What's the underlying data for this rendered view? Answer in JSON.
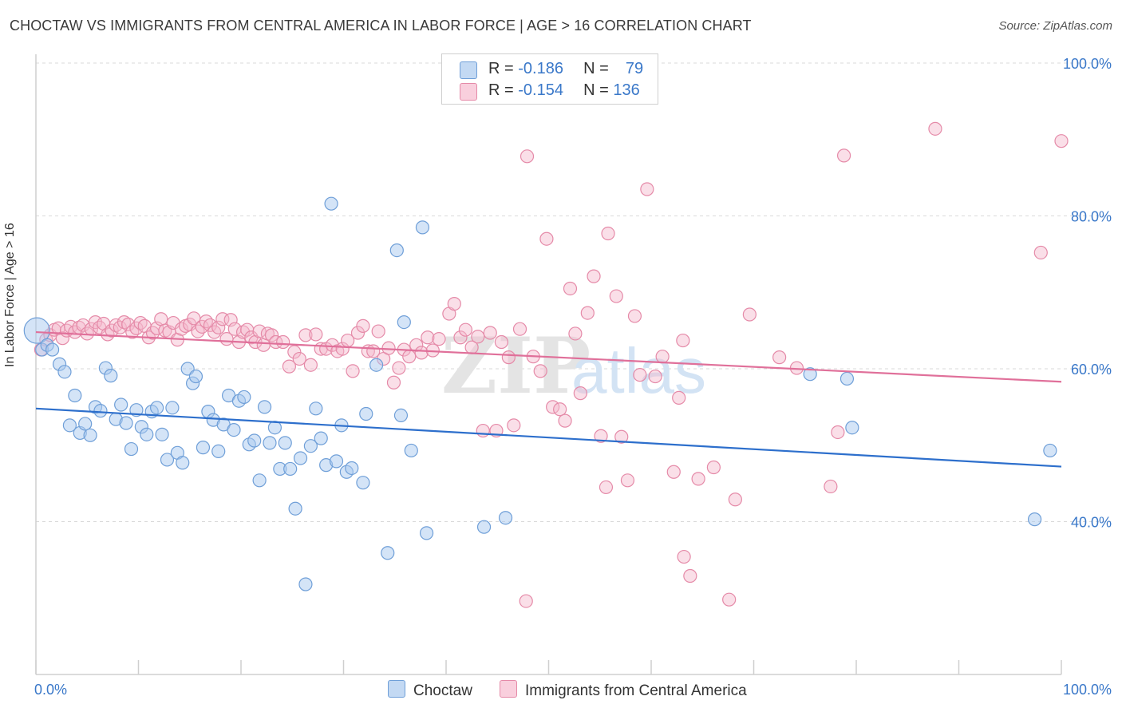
{
  "header": {
    "title": "CHOCTAW VS IMMIGRANTS FROM CENTRAL AMERICA IN LABOR FORCE | AGE > 16 CORRELATION CHART",
    "source": "Source: ZipAtlas.com"
  },
  "watermark": {
    "zip": "ZIP",
    "atlas": "atlas"
  },
  "legend": {
    "r_label": "R =",
    "n_label": "N =",
    "items": [
      {
        "r": "-0.186",
        "n": "79"
      },
      {
        "r": "-0.154",
        "n": "136"
      }
    ]
  },
  "bottom_legend": {
    "items": [
      "Choctaw",
      "Immigrants from Central America"
    ]
  },
  "colors": {
    "blue_fill": "#a9c9ef",
    "blue_stroke": "#6f9fd8",
    "blue_line": "#2d6fcc",
    "pink_fill": "#f5b7cb",
    "pink_stroke": "#e58aa8",
    "pink_line": "#e0709a",
    "tick_label": "#3a78c9",
    "grid": "#d9d9d9"
  },
  "chart_data": {
    "type": "scatter",
    "ylabel": "In Labor Force | Age > 16",
    "xlabel": "",
    "xlim": [
      0,
      100
    ],
    "ylim": [
      20,
      100
    ],
    "x_tick_labels": [
      "0.0%",
      "100.0%"
    ],
    "y_ticks": [
      40,
      60,
      80,
      100
    ],
    "y_tick_labels": [
      "40.0%",
      "60.0%",
      "80.0%",
      "100.0%"
    ],
    "grid": true,
    "legend_position": "top-center",
    "series": [
      {
        "name": "Choctaw",
        "r": -0.186,
        "n": 79,
        "trend": [
          [
            0,
            54.8
          ],
          [
            100,
            47.2
          ]
        ],
        "points": [
          [
            0.1,
            65
          ],
          [
            0.6,
            62.5
          ],
          [
            1.1,
            63.1
          ],
          [
            1.6,
            62.5
          ],
          [
            2.3,
            60.6
          ],
          [
            2.8,
            59.6
          ],
          [
            3.8,
            56.5
          ],
          [
            3.3,
            52.6
          ],
          [
            4.3,
            51.6
          ],
          [
            4.8,
            52.8
          ],
          [
            5.3,
            51.3
          ],
          [
            5.8,
            55
          ],
          [
            6.3,
            54.5
          ],
          [
            6.8,
            60.1
          ],
          [
            7.3,
            59.1
          ],
          [
            7.8,
            53.4
          ],
          [
            8.3,
            55.3
          ],
          [
            8.8,
            52.9
          ],
          [
            9.3,
            49.5
          ],
          [
            9.8,
            54.6
          ],
          [
            10.3,
            52.4
          ],
          [
            10.8,
            51.4
          ],
          [
            11.3,
            54.4
          ],
          [
            11.8,
            54.9
          ],
          [
            12.3,
            51.4
          ],
          [
            12.8,
            48.1
          ],
          [
            13.3,
            54.9
          ],
          [
            13.8,
            49
          ],
          [
            14.3,
            47.7
          ],
          [
            14.8,
            60
          ],
          [
            15.3,
            58.1
          ],
          [
            15.6,
            59
          ],
          [
            16.3,
            49.7
          ],
          [
            16.8,
            54.4
          ],
          [
            17.3,
            53.3
          ],
          [
            17.8,
            49.2
          ],
          [
            18.3,
            52.7
          ],
          [
            18.8,
            56.5
          ],
          [
            19.3,
            52
          ],
          [
            19.8,
            55.8
          ],
          [
            20.3,
            56.3
          ],
          [
            20.8,
            50.1
          ],
          [
            21.3,
            50.6
          ],
          [
            21.8,
            45.4
          ],
          [
            22.3,
            55
          ],
          [
            22.8,
            50.3
          ],
          [
            23.3,
            52.3
          ],
          [
            23.8,
            46.9
          ],
          [
            24.3,
            50.3
          ],
          [
            24.8,
            46.9
          ],
          [
            25.3,
            41.7
          ],
          [
            25.8,
            48.3
          ],
          [
            26.3,
            31.8
          ],
          [
            26.8,
            49.9
          ],
          [
            27.3,
            54.8
          ],
          [
            27.8,
            50.9
          ],
          [
            28.3,
            47.4
          ],
          [
            28.8,
            81.6
          ],
          [
            29.3,
            47.9
          ],
          [
            29.8,
            52.6
          ],
          [
            30.3,
            46.5
          ],
          [
            30.8,
            47
          ],
          [
            31.9,
            45.1
          ],
          [
            32.2,
            54.1
          ],
          [
            33.2,
            60.5
          ],
          [
            34.3,
            35.9
          ],
          [
            35.2,
            75.5
          ],
          [
            35.6,
            53.9
          ],
          [
            35.9,
            66.1
          ],
          [
            36.6,
            49.3
          ],
          [
            37.7,
            78.5
          ],
          [
            38.1,
            38.5
          ],
          [
            43.7,
            39.3
          ],
          [
            45.8,
            40.5
          ],
          [
            75.5,
            59.3
          ],
          [
            79.1,
            58.7
          ],
          [
            79.6,
            52.3
          ],
          [
            97.4,
            40.3
          ],
          [
            98.9,
            49.3
          ]
        ]
      },
      {
        "name": "Immigrants from Central America",
        "r": -0.154,
        "n": 136,
        "trend": [
          [
            0,
            64.8
          ],
          [
            100,
            58.3
          ]
        ],
        "points": [
          [
            0.5,
            62.5
          ],
          [
            1,
            63.8
          ],
          [
            1.4,
            64.4
          ],
          [
            1.8,
            65.1
          ],
          [
            2.2,
            65.3
          ],
          [
            2.6,
            64
          ],
          [
            3,
            65
          ],
          [
            3.4,
            65.5
          ],
          [
            3.8,
            64.8
          ],
          [
            4.2,
            65.4
          ],
          [
            4.6,
            65.7
          ],
          [
            5,
            64.6
          ],
          [
            5.4,
            65.2
          ],
          [
            5.8,
            66.1
          ],
          [
            6.2,
            65.4
          ],
          [
            6.6,
            65.9
          ],
          [
            7,
            64.5
          ],
          [
            7.4,
            65
          ],
          [
            7.8,
            65.7
          ],
          [
            8.2,
            65.4
          ],
          [
            8.6,
            66.1
          ],
          [
            9,
            65.8
          ],
          [
            9.4,
            64.8
          ],
          [
            9.8,
            65.3
          ],
          [
            10.2,
            66
          ],
          [
            10.6,
            65.6
          ],
          [
            11,
            64.1
          ],
          [
            11.4,
            64.7
          ],
          [
            11.8,
            65.3
          ],
          [
            12.2,
            66.5
          ],
          [
            12.6,
            65
          ],
          [
            13,
            64.8
          ],
          [
            13.4,
            66
          ],
          [
            13.8,
            63.8
          ],
          [
            14.2,
            65.2
          ],
          [
            14.6,
            65.6
          ],
          [
            15,
            65.8
          ],
          [
            15.4,
            66.6
          ],
          [
            15.8,
            64.9
          ],
          [
            16.2,
            65.5
          ],
          [
            16.6,
            66.2
          ],
          [
            17,
            65.7
          ],
          [
            17.4,
            64.8
          ],
          [
            17.8,
            65.4
          ],
          [
            18.2,
            66.5
          ],
          [
            18.6,
            63.9
          ],
          [
            19,
            66.4
          ],
          [
            19.4,
            65.2
          ],
          [
            19.8,
            63.5
          ],
          [
            20.2,
            64.8
          ],
          [
            20.6,
            65.1
          ],
          [
            21,
            64.1
          ],
          [
            21.4,
            63.5
          ],
          [
            21.8,
            64.9
          ],
          [
            22.2,
            63.1
          ],
          [
            22.6,
            64.6
          ],
          [
            23,
            64.4
          ],
          [
            23.4,
            63.5
          ],
          [
            24.1,
            63.5
          ],
          [
            24.7,
            60.3
          ],
          [
            25.2,
            62.2
          ],
          [
            25.7,
            61.3
          ],
          [
            26.3,
            64.4
          ],
          [
            26.8,
            60.5
          ],
          [
            27.3,
            64.5
          ],
          [
            27.8,
            62.6
          ],
          [
            28.3,
            62.6
          ],
          [
            28.9,
            63.1
          ],
          [
            29.4,
            62.3
          ],
          [
            29.9,
            62.6
          ],
          [
            30.4,
            63.7
          ],
          [
            30.9,
            59.7
          ],
          [
            31.4,
            64.7
          ],
          [
            31.9,
            65.6
          ],
          [
            32.4,
            62.3
          ],
          [
            32.9,
            62.3
          ],
          [
            33.4,
            64.9
          ],
          [
            33.9,
            61.3
          ],
          [
            34.4,
            62.7
          ],
          [
            34.9,
            58.2
          ],
          [
            35.4,
            60.1
          ],
          [
            35.9,
            62.5
          ],
          [
            36.4,
            61.6
          ],
          [
            37.1,
            63.1
          ],
          [
            37.6,
            62.1
          ],
          [
            38.2,
            64.1
          ],
          [
            38.7,
            62.4
          ],
          [
            39.3,
            63.9
          ],
          [
            40.3,
            67.2
          ],
          [
            40.8,
            68.5
          ],
          [
            41.4,
            64.1
          ],
          [
            41.9,
            65.1
          ],
          [
            42.5,
            62.8
          ],
          [
            43.1,
            64.2
          ],
          [
            43.6,
            51.9
          ],
          [
            44.3,
            64.7
          ],
          [
            44.9,
            51.9
          ],
          [
            45.4,
            63.5
          ],
          [
            46.1,
            61.5
          ],
          [
            46.6,
            52.6
          ],
          [
            47.2,
            65.2
          ],
          [
            47.8,
            29.6
          ],
          [
            47.9,
            87.8
          ],
          [
            48.5,
            61.6
          ],
          [
            49.2,
            59.7
          ],
          [
            49.8,
            77
          ],
          [
            50.4,
            55
          ],
          [
            51.1,
            54.7
          ],
          [
            51.6,
            53.2
          ],
          [
            52.1,
            70.5
          ],
          [
            52.6,
            64.6
          ],
          [
            53.1,
            56.8
          ],
          [
            53.8,
            67.3
          ],
          [
            54.4,
            72.1
          ],
          [
            55.1,
            51.2
          ],
          [
            55.6,
            44.5
          ],
          [
            55.8,
            77.7
          ],
          [
            56.6,
            69.5
          ],
          [
            57.1,
            51.1
          ],
          [
            57.7,
            45.4
          ],
          [
            58.4,
            66.9
          ],
          [
            58.9,
            59.2
          ],
          [
            59.6,
            83.5
          ],
          [
            60.4,
            59
          ],
          [
            61.1,
            61.6
          ],
          [
            62.2,
            46.5
          ],
          [
            62.7,
            56.2
          ],
          [
            63.1,
            63.7
          ],
          [
            63.2,
            35.4
          ],
          [
            63.8,
            32.9
          ],
          [
            64.6,
            45.6
          ],
          [
            66.1,
            47.1
          ],
          [
            67.6,
            29.8
          ],
          [
            68.2,
            42.9
          ],
          [
            69.6,
            67.1
          ],
          [
            72.5,
            61.5
          ],
          [
            74.2,
            60.1
          ],
          [
            77.5,
            44.6
          ],
          [
            78.2,
            51.7
          ],
          [
            78.8,
            87.9
          ],
          [
            87.7,
            91.4
          ],
          [
            98,
            75.2
          ],
          [
            100,
            89.8
          ]
        ]
      }
    ]
  }
}
